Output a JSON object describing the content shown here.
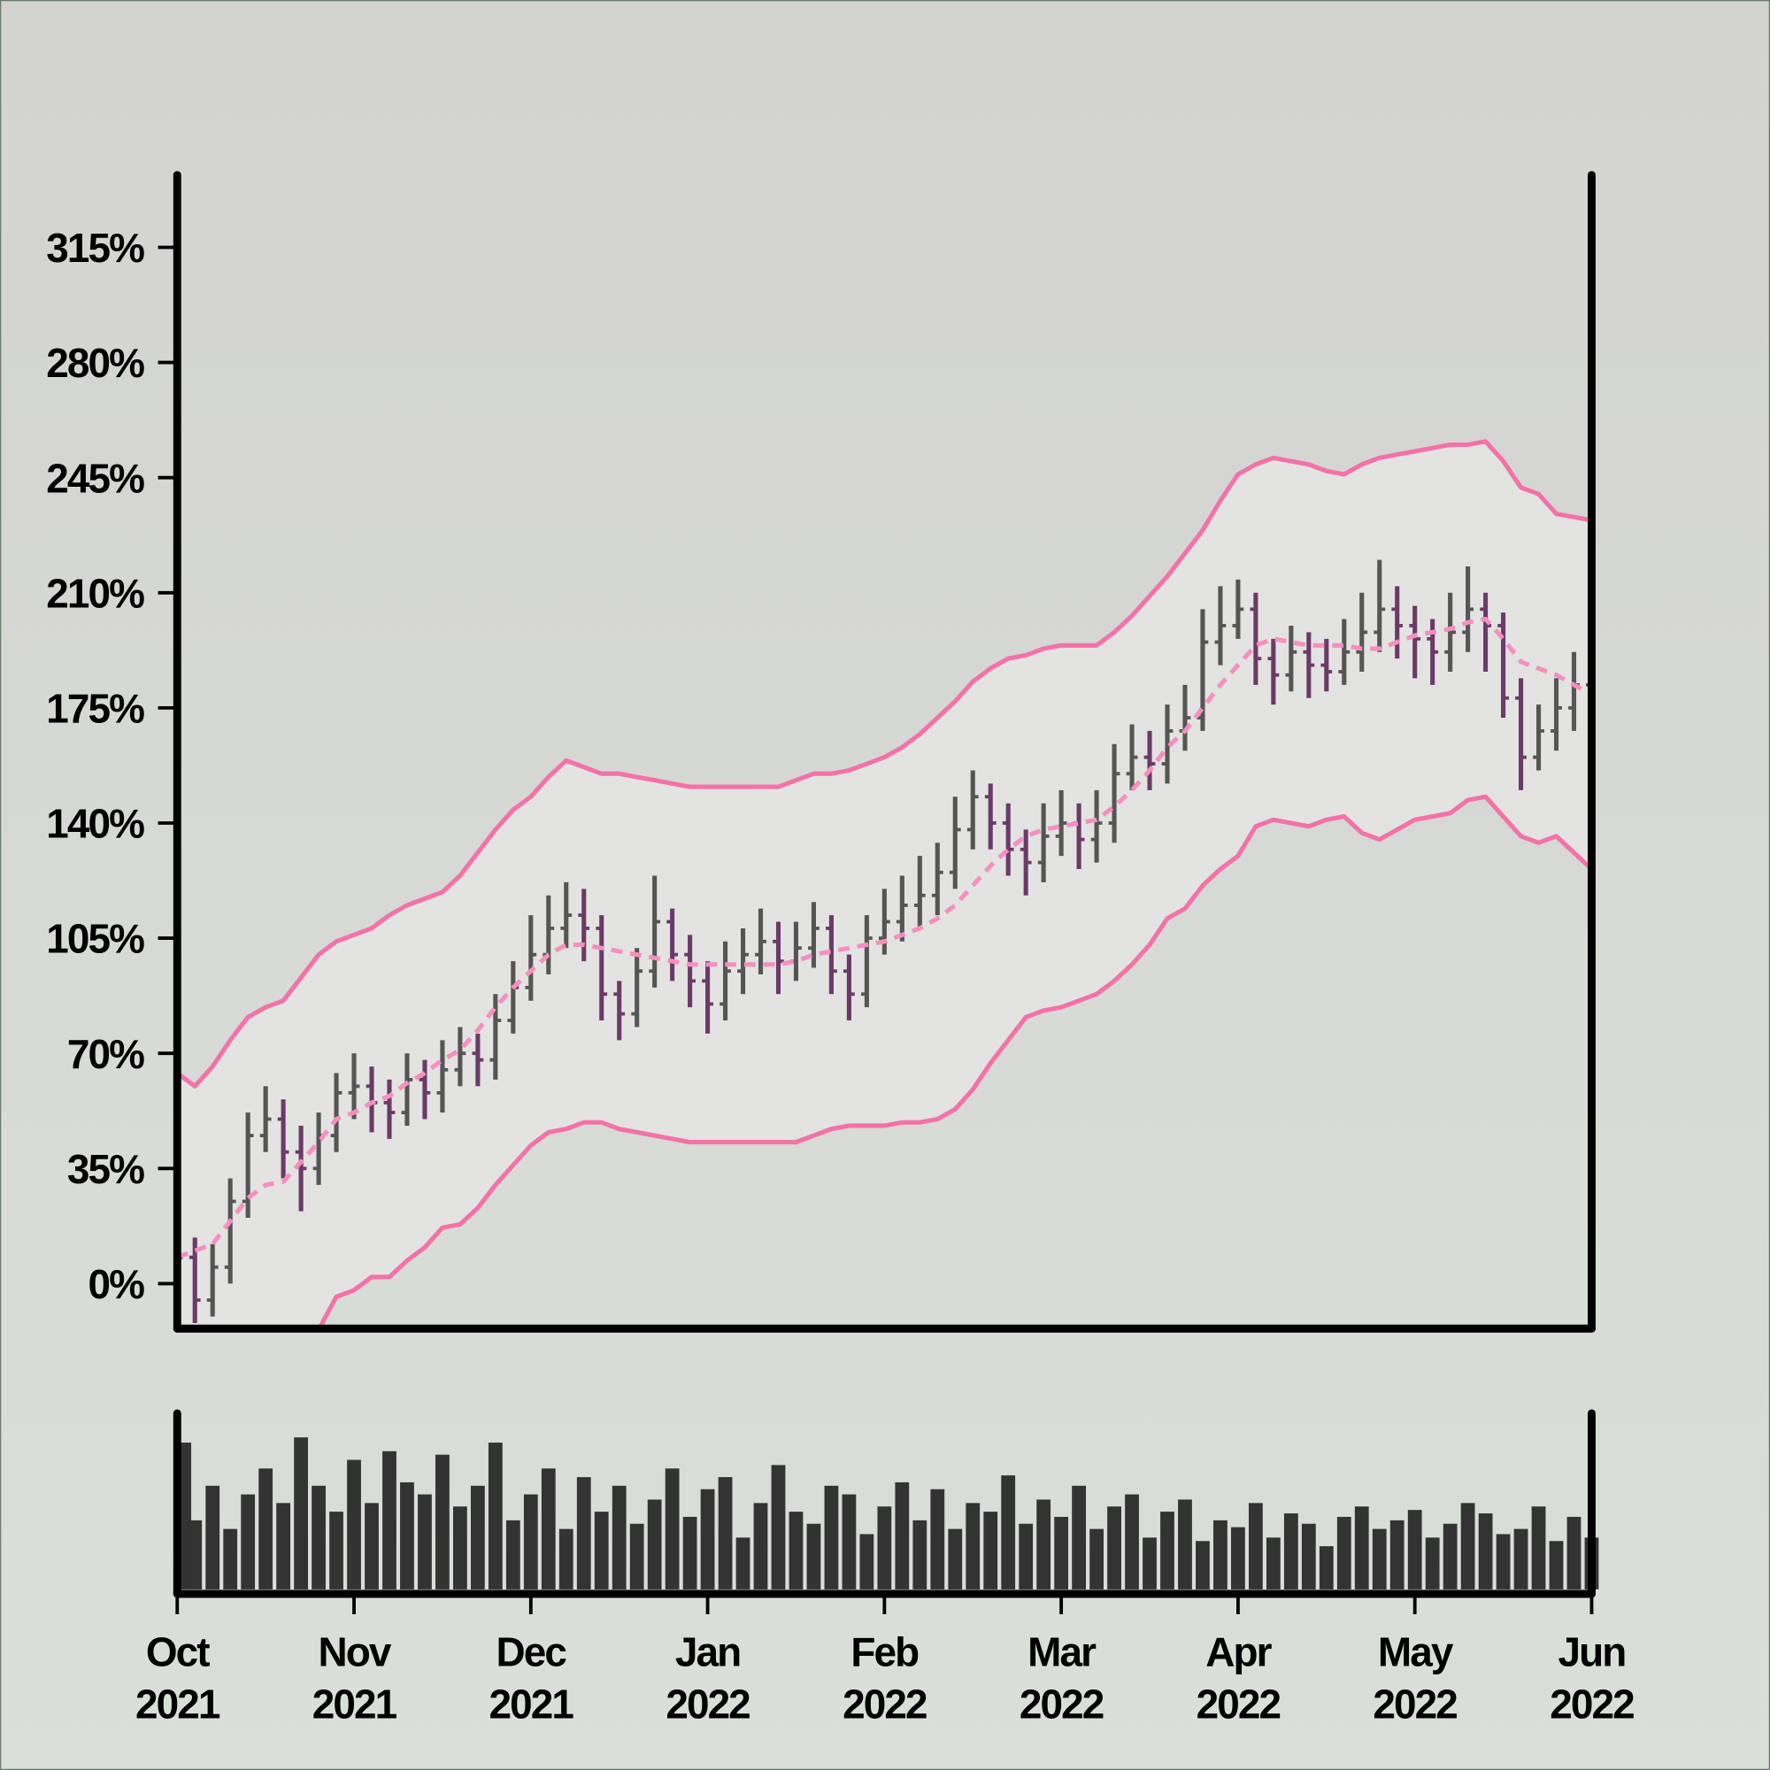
{
  "chart_data": {
    "type": "ohlc",
    "x": [
      0,
      0.1,
      0.2,
      0.3,
      0.4,
      0.5,
      0.6,
      0.7,
      0.8,
      0.9,
      1,
      1.1,
      1.2,
      1.3,
      1.4,
      1.5,
      1.6,
      1.7,
      1.8,
      1.9,
      2,
      2.1,
      2.2,
      2.3,
      2.4,
      2.5,
      2.6,
      2.7,
      2.8,
      2.9,
      3,
      3.1,
      3.2,
      3.3,
      3.4,
      3.5,
      3.6,
      3.7,
      3.8,
      3.9,
      4,
      4.1,
      4.2,
      4.3,
      4.4,
      4.5,
      4.6,
      4.7,
      4.8,
      4.9,
      5,
      5.1,
      5.2,
      5.3,
      5.4,
      5.5,
      5.6,
      5.7,
      5.8,
      5.9,
      6,
      6.1,
      6.2,
      6.3,
      6.4,
      6.5,
      6.6,
      6.7,
      6.8,
      6.9,
      7,
      7.1,
      7.2,
      7.3,
      7.4,
      7.5,
      7.6,
      7.7,
      7.8,
      7.9,
      8
    ],
    "xlim": [
      0,
      8
    ],
    "xticks": [
      {
        "value": 0,
        "label": "Oct\n2021"
      },
      {
        "value": 1,
        "label": "Nov\n2021"
      },
      {
        "value": 2,
        "label": "Dec\n2021"
      },
      {
        "value": 3,
        "label": "Jan\n2022"
      },
      {
        "value": 4,
        "label": "Feb\n2022"
      },
      {
        "value": 5,
        "label": "Mar\n2022"
      },
      {
        "value": 6,
        "label": "Apr\n2022"
      },
      {
        "value": 7,
        "label": "May\n2022"
      },
      {
        "value": 8,
        "label": "Jun\n2022"
      }
    ],
    "ylim": [
      -13,
      337
    ],
    "yticks": [
      {
        "value": 0,
        "label": "0%"
      },
      {
        "value": 35,
        "label": "35%"
      },
      {
        "value": 70,
        "label": "70%"
      },
      {
        "value": 105,
        "label": "105%"
      },
      {
        "value": 140,
        "label": "140%"
      },
      {
        "value": 175,
        "label": "175%"
      },
      {
        "value": 210,
        "label": "210%"
      },
      {
        "value": 245,
        "label": "245%"
      },
      {
        "value": 280,
        "label": "280%"
      },
      {
        "value": 315,
        "label": "315%"
      }
    ],
    "up_color": "#555555",
    "down_color": "#6b3a68",
    "ohlc": {
      "open": [
        12,
        8,
        -5,
        5,
        25,
        45,
        50,
        40,
        35,
        45,
        58,
        60,
        55,
        52,
        62,
        58,
        65,
        70,
        68,
        80,
        90,
        100,
        108,
        112,
        108,
        88,
        82,
        95,
        110,
        100,
        92,
        85,
        95,
        100,
        104,
        98,
        102,
        108,
        95,
        88,
        105,
        110,
        115,
        118,
        125,
        138,
        148,
        140,
        132,
        128,
        136,
        140,
        135,
        140,
        155,
        160,
        158,
        168,
        172,
        195,
        200,
        205,
        190,
        185,
        192,
        188,
        186,
        192,
        198,
        205,
        200,
        196,
        192,
        198,
        205,
        200,
        178,
        160,
        168,
        175,
        182
      ],
      "high": [
        22,
        14,
        12,
        32,
        52,
        60,
        56,
        48,
        52,
        64,
        70,
        66,
        62,
        70,
        68,
        74,
        78,
        76,
        88,
        98,
        112,
        118,
        122,
        120,
        112,
        92,
        102,
        124,
        114,
        106,
        98,
        104,
        108,
        114,
        110,
        110,
        116,
        112,
        100,
        112,
        120,
        124,
        130,
        134,
        148,
        156,
        152,
        146,
        138,
        146,
        150,
        146,
        150,
        164,
        170,
        168,
        176,
        182,
        205,
        212,
        214,
        210,
        196,
        200,
        198,
        196,
        202,
        210,
        220,
        212,
        206,
        202,
        210,
        218,
        210,
        204,
        184,
        176,
        184,
        192,
        188
      ],
      "low": [
        -2,
        -12,
        -10,
        0,
        20,
        40,
        32,
        22,
        30,
        40,
        50,
        46,
        44,
        48,
        50,
        52,
        60,
        60,
        62,
        76,
        86,
        94,
        102,
        98,
        80,
        74,
        78,
        90,
        92,
        84,
        76,
        80,
        88,
        94,
        88,
        92,
        96,
        88,
        80,
        84,
        100,
        104,
        108,
        112,
        120,
        132,
        132,
        124,
        118,
        122,
        130,
        126,
        128,
        134,
        150,
        150,
        152,
        162,
        168,
        188,
        196,
        182,
        176,
        180,
        178,
        180,
        182,
        186,
        192,
        190,
        184,
        182,
        186,
        192,
        186,
        172,
        150,
        156,
        162,
        168,
        162
      ],
      "close": [
        8,
        -5,
        5,
        25,
        45,
        50,
        40,
        35,
        45,
        58,
        60,
        55,
        52,
        62,
        58,
        65,
        70,
        68,
        80,
        90,
        100,
        108,
        112,
        108,
        88,
        82,
        95,
        110,
        100,
        92,
        85,
        95,
        100,
        104,
        98,
        102,
        108,
        95,
        88,
        105,
        110,
        115,
        118,
        125,
        138,
        148,
        140,
        132,
        128,
        136,
        140,
        135,
        140,
        155,
        160,
        158,
        168,
        172,
        195,
        200,
        205,
        190,
        185,
        192,
        188,
        186,
        192,
        198,
        205,
        200,
        196,
        192,
        198,
        205,
        200,
        178,
        160,
        168,
        175,
        182,
        172
      ]
    },
    "band_fill": "#e3e4e2",
    "upper_band": {
      "color": "#f472a8",
      "values": [
        64,
        60,
        66,
        74,
        81,
        84,
        86,
        93,
        100,
        104,
        106,
        108,
        112,
        115,
        117,
        119,
        124,
        131,
        138,
        144,
        148,
        154,
        159,
        157,
        155,
        155,
        154,
        153,
        152,
        151,
        151,
        151,
        151,
        151,
        151,
        153,
        155,
        155,
        156,
        158,
        160,
        163,
        167,
        172,
        177,
        183,
        187,
        190,
        191,
        193,
        194,
        194,
        194,
        198,
        203,
        209,
        215,
        222,
        229,
        238,
        246,
        249,
        251,
        250,
        249,
        247,
        246,
        249,
        251,
        252,
        253,
        254,
        255,
        255,
        256,
        250,
        242,
        240,
        234,
        233,
        232
      ]
    },
    "middle_band": {
      "color": "#f78fbe",
      "dashed": true,
      "values": [
        8,
        10,
        12,
        19,
        26,
        30,
        31,
        37,
        43,
        50,
        52,
        55,
        57,
        61,
        64,
        68,
        71,
        77,
        84,
        90,
        95,
        100,
        103,
        103,
        102,
        101,
        100,
        99,
        98,
        97,
        97,
        97,
        97,
        97,
        97,
        98,
        100,
        101,
        102,
        103,
        104,
        106,
        108,
        111,
        115,
        121,
        127,
        132,
        136,
        138,
        139,
        140,
        141,
        145,
        150,
        156,
        163,
        168,
        175,
        182,
        188,
        194,
        196,
        195,
        194,
        194,
        194,
        193,
        193,
        195,
        197,
        198,
        199,
        201,
        202,
        196,
        189,
        187,
        185,
        182,
        179
      ]
    },
    "lower_band": {
      "color": "#f472a8",
      "values": [
        -48,
        -40,
        -42,
        -36,
        -29,
        -24,
        -24,
        -19,
        -14,
        -4,
        -2,
        2,
        2,
        7,
        11,
        17,
        18,
        23,
        30,
        36,
        42,
        46,
        47,
        49,
        49,
        47,
        46,
        45,
        44,
        43,
        43,
        43,
        43,
        43,
        43,
        43,
        45,
        47,
        48,
        48,
        48,
        49,
        49,
        50,
        53,
        59,
        67,
        74,
        81,
        83,
        84,
        86,
        88,
        92,
        97,
        103,
        111,
        114,
        121,
        126,
        130,
        139,
        141,
        140,
        139,
        141,
        142,
        137,
        135,
        138,
        141,
        142,
        143,
        147,
        148,
        142,
        136,
        134,
        136,
        131,
        126
      ]
    },
    "volume": {
      "color": "#333333",
      "ylim": [
        0,
        100
      ],
      "values": [
        85,
        40,
        60,
        35,
        55,
        70,
        50,
        88,
        60,
        45,
        75,
        50,
        80,
        62,
        55,
        78,
        48,
        60,
        85,
        40,
        55,
        70,
        35,
        65,
        45,
        60,
        38,
        52,
        70,
        42,
        58,
        65,
        30,
        50,
        72,
        45,
        38,
        60,
        55,
        32,
        48,
        62,
        40,
        58,
        35,
        50,
        45,
        66,
        38,
        52,
        42,
        60,
        35,
        48,
        55,
        30,
        45,
        52,
        28,
        40,
        36,
        50,
        30,
        44,
        38,
        25,
        42,
        48,
        35,
        40,
        46,
        30,
        38,
        50,
        44,
        32,
        35,
        48,
        28,
        42,
        30
      ]
    }
  }
}
